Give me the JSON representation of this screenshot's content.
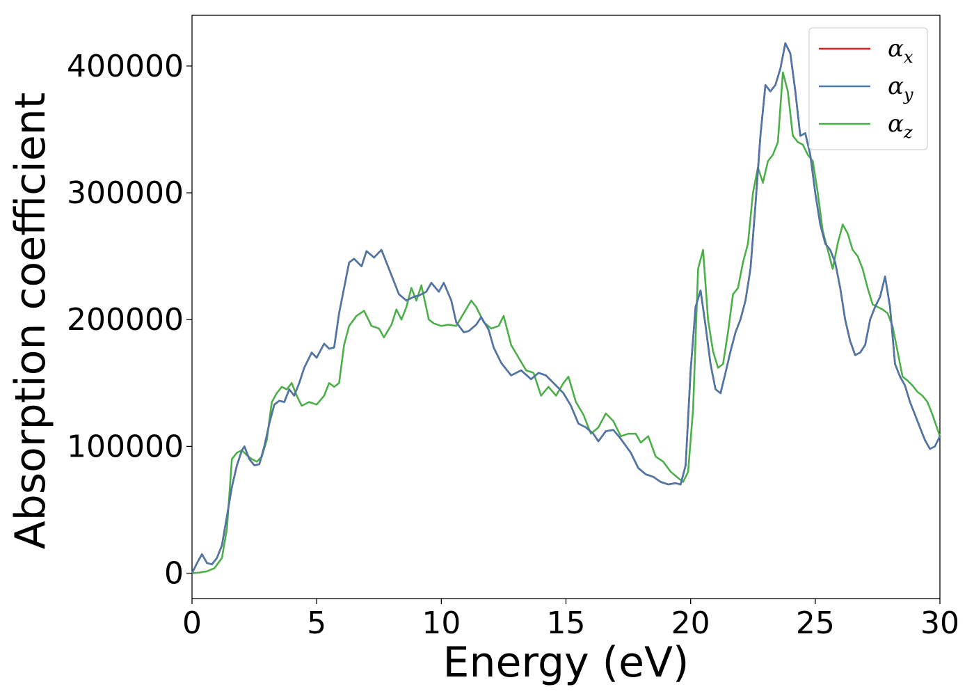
{
  "chart_data": {
    "type": "line",
    "title": "",
    "xlabel": "Energy (eV)",
    "ylabel": "Absorption coefficient",
    "xlim": [
      0,
      30
    ],
    "ylim": [
      -20000,
      440000
    ],
    "xticks": [
      0,
      5,
      10,
      15,
      20,
      25,
      30
    ],
    "xtick_labels": [
      "0",
      "5",
      "10",
      "15",
      "20",
      "25",
      "30"
    ],
    "yticks": [
      0,
      100000,
      200000,
      300000,
      400000
    ],
    "ytick_labels": [
      "0",
      "100000",
      "200000",
      "300000",
      "400000"
    ],
    "grid": false,
    "legend_position": "top-right",
    "series": [
      {
        "name": "α",
        "subscript": "x",
        "color": "#e41a1c",
        "x": [
          0,
          0.2,
          0.4,
          0.6,
          0.8,
          1.0,
          1.2,
          1.4,
          1.6,
          1.8,
          2.0,
          2.1,
          2.3,
          2.5,
          2.7,
          2.9,
          3.1,
          3.3,
          3.5,
          3.7,
          3.9,
          4.1,
          4.3,
          4.5,
          4.8,
          5.0,
          5.3,
          5.5,
          5.7,
          5.9,
          6.1,
          6.3,
          6.5,
          6.8,
          7.0,
          7.3,
          7.6,
          7.8,
          8.1,
          8.3,
          8.6,
          8.9,
          9.1,
          9.4,
          9.6,
          9.9,
          10.1,
          10.4,
          10.6,
          10.9,
          11.1,
          11.4,
          11.6,
          11.9,
          12.1,
          12.4,
          12.8,
          13.2,
          13.6,
          13.9,
          14.2,
          14.6,
          14.9,
          15.2,
          15.5,
          15.8,
          16.1,
          16.3,
          16.6,
          16.9,
          17.2,
          17.6,
          17.9,
          18.2,
          18.5,
          18.8,
          19.1,
          19.4,
          19.6,
          19.8,
          20.0,
          20.2,
          20.4,
          20.6,
          20.8,
          21.0,
          21.2,
          21.4,
          21.6,
          21.8,
          22.0,
          22.2,
          22.4,
          22.6,
          22.8,
          23.0,
          23.2,
          23.4,
          23.6,
          23.8,
          24.0,
          24.2,
          24.4,
          24.6,
          24.8,
          25.0,
          25.2,
          25.4,
          25.6,
          25.8,
          26.0,
          26.2,
          26.4,
          26.6,
          26.8,
          27.0,
          27.2,
          27.4,
          27.6,
          27.8,
          28.0,
          28.2,
          28.4,
          28.6,
          28.8,
          29.0,
          29.2,
          29.4,
          29.6,
          29.8,
          30.0
        ],
        "values": [
          0,
          8000,
          15000,
          8000,
          7000,
          12000,
          22000,
          45000,
          68000,
          85000,
          97000,
          100000,
          90000,
          85000,
          86000,
          100000,
          118000,
          133000,
          136000,
          135000,
          145000,
          140000,
          150000,
          162000,
          174000,
          170000,
          181000,
          177000,
          178000,
          205000,
          225000,
          245000,
          248000,
          242000,
          254000,
          249000,
          255000,
          245000,
          230000,
          220000,
          215000,
          218000,
          219000,
          222000,
          229000,
          222000,
          229000,
          215000,
          198000,
          190000,
          191000,
          196000,
          202000,
          192000,
          178000,
          166000,
          156000,
          160000,
          153000,
          158000,
          156000,
          148000,
          142000,
          132000,
          118000,
          115000,
          110000,
          104000,
          112000,
          113000,
          106000,
          95000,
          83000,
          78000,
          76000,
          72000,
          70000,
          71000,
          70000,
          85000,
          160000,
          210000,
          223000,
          195000,
          165000,
          145000,
          142000,
          158000,
          175000,
          190000,
          200000,
          215000,
          240000,
          290000,
          345000,
          385000,
          380000,
          385000,
          398000,
          418000,
          410000,
          380000,
          345000,
          347000,
          330000,
          300000,
          275000,
          260000,
          255000,
          245000,
          225000,
          200000,
          183000,
          172000,
          174000,
          180000,
          200000,
          210000,
          218000,
          234000,
          210000,
          165000,
          155000,
          148000,
          135000,
          125000,
          115000,
          105000,
          98000,
          100000,
          108000
        ]
      },
      {
        "name": "α",
        "subscript": "y",
        "color": "#4a78a8",
        "x": [
          0,
          0.2,
          0.4,
          0.6,
          0.8,
          1.0,
          1.2,
          1.4,
          1.6,
          1.8,
          2.0,
          2.1,
          2.3,
          2.5,
          2.7,
          2.9,
          3.1,
          3.3,
          3.5,
          3.7,
          3.9,
          4.1,
          4.3,
          4.5,
          4.8,
          5.0,
          5.3,
          5.5,
          5.7,
          5.9,
          6.1,
          6.3,
          6.5,
          6.8,
          7.0,
          7.3,
          7.6,
          7.8,
          8.1,
          8.3,
          8.6,
          8.9,
          9.1,
          9.4,
          9.6,
          9.9,
          10.1,
          10.4,
          10.6,
          10.9,
          11.1,
          11.4,
          11.6,
          11.9,
          12.1,
          12.4,
          12.8,
          13.2,
          13.6,
          13.9,
          14.2,
          14.6,
          14.9,
          15.2,
          15.5,
          15.8,
          16.1,
          16.3,
          16.6,
          16.9,
          17.2,
          17.6,
          17.9,
          18.2,
          18.5,
          18.8,
          19.1,
          19.4,
          19.6,
          19.8,
          20.0,
          20.2,
          20.4,
          20.6,
          20.8,
          21.0,
          21.2,
          21.4,
          21.6,
          21.8,
          22.0,
          22.2,
          22.4,
          22.6,
          22.8,
          23.0,
          23.2,
          23.4,
          23.6,
          23.8,
          24.0,
          24.2,
          24.4,
          24.6,
          24.8,
          25.0,
          25.2,
          25.4,
          25.6,
          25.8,
          26.0,
          26.2,
          26.4,
          26.6,
          26.8,
          27.0,
          27.2,
          27.4,
          27.6,
          27.8,
          28.0,
          28.2,
          28.4,
          28.6,
          28.8,
          29.0,
          29.2,
          29.4,
          29.6,
          29.8,
          30.0
        ],
        "values": [
          0,
          8000,
          15000,
          8000,
          7000,
          12000,
          22000,
          45000,
          68000,
          85000,
          97000,
          100000,
          90000,
          85000,
          86000,
          100000,
          118000,
          133000,
          136000,
          135000,
          145000,
          140000,
          150000,
          162000,
          174000,
          170000,
          181000,
          177000,
          178000,
          205000,
          225000,
          245000,
          248000,
          242000,
          254000,
          249000,
          255000,
          245000,
          230000,
          220000,
          215000,
          218000,
          219000,
          222000,
          229000,
          222000,
          229000,
          215000,
          198000,
          190000,
          191000,
          196000,
          202000,
          192000,
          178000,
          166000,
          156000,
          160000,
          153000,
          158000,
          156000,
          148000,
          142000,
          132000,
          118000,
          115000,
          110000,
          104000,
          112000,
          113000,
          106000,
          95000,
          83000,
          78000,
          76000,
          72000,
          70000,
          71000,
          70000,
          85000,
          160000,
          210000,
          223000,
          195000,
          165000,
          145000,
          142000,
          158000,
          175000,
          190000,
          200000,
          215000,
          240000,
          290000,
          345000,
          385000,
          380000,
          385000,
          398000,
          418000,
          410000,
          380000,
          345000,
          347000,
          330000,
          300000,
          275000,
          260000,
          255000,
          245000,
          225000,
          200000,
          183000,
          172000,
          174000,
          180000,
          200000,
          210000,
          218000,
          234000,
          210000,
          165000,
          155000,
          148000,
          135000,
          125000,
          115000,
          105000,
          98000,
          100000,
          108000
        ]
      },
      {
        "name": "α",
        "subscript": "z",
        "color": "#4daf4a",
        "x": [
          0,
          0.3,
          0.6,
          0.9,
          1.2,
          1.4,
          1.6,
          1.8,
          2.0,
          2.2,
          2.4,
          2.6,
          2.8,
          3.0,
          3.2,
          3.4,
          3.6,
          3.8,
          4.0,
          4.2,
          4.4,
          4.7,
          5.0,
          5.3,
          5.5,
          5.7,
          5.9,
          6.1,
          6.3,
          6.6,
          6.9,
          7.2,
          7.5,
          7.7,
          8.0,
          8.2,
          8.4,
          8.6,
          8.8,
          9.0,
          9.2,
          9.5,
          9.7,
          10.0,
          10.3,
          10.6,
          10.9,
          11.2,
          11.4,
          11.7,
          12.0,
          12.3,
          12.5,
          12.8,
          13.1,
          13.4,
          13.7,
          14.0,
          14.3,
          14.6,
          14.9,
          15.1,
          15.4,
          15.7,
          16.0,
          16.3,
          16.6,
          16.9,
          17.2,
          17.5,
          17.8,
          18.0,
          18.3,
          18.6,
          18.9,
          19.2,
          19.5,
          19.7,
          19.9,
          20.1,
          20.3,
          20.5,
          20.7,
          20.9,
          21.1,
          21.3,
          21.5,
          21.7,
          21.9,
          22.1,
          22.3,
          22.5,
          22.7,
          22.9,
          23.1,
          23.3,
          23.5,
          23.7,
          23.9,
          24.1,
          24.3,
          24.5,
          24.7,
          24.9,
          25.1,
          25.3,
          25.5,
          25.7,
          25.9,
          26.1,
          26.3,
          26.5,
          26.7,
          26.9,
          27.1,
          27.3,
          27.5,
          27.7,
          27.9,
          28.1,
          28.3,
          28.5,
          28.7,
          28.9,
          29.1,
          29.3,
          29.5,
          29.7,
          30.0
        ],
        "values": [
          0,
          500,
          1500,
          4000,
          12000,
          35000,
          90000,
          95000,
          97000,
          93000,
          90000,
          88000,
          92000,
          105000,
          135000,
          142000,
          147000,
          145000,
          150000,
          140000,
          132000,
          135000,
          133000,
          140000,
          150000,
          147000,
          150000,
          180000,
          195000,
          203000,
          207000,
          195000,
          193000,
          186000,
          196000,
          208000,
          200000,
          210000,
          225000,
          215000,
          227000,
          200000,
          197000,
          195000,
          196000,
          195000,
          205000,
          215000,
          210000,
          198000,
          193000,
          195000,
          203000,
          180000,
          170000,
          160000,
          158000,
          140000,
          147000,
          140000,
          150000,
          155000,
          135000,
          125000,
          110000,
          115000,
          126000,
          120000,
          108000,
          110000,
          110000,
          103000,
          108000,
          92000,
          88000,
          80000,
          75000,
          72000,
          80000,
          130000,
          240000,
          255000,
          200000,
          175000,
          162000,
          165000,
          190000,
          220000,
          225000,
          245000,
          260000,
          300000,
          320000,
          308000,
          325000,
          330000,
          340000,
          395000,
          380000,
          345000,
          340000,
          338000,
          330000,
          325000,
          300000,
          270000,
          255000,
          240000,
          260000,
          275000,
          268000,
          255000,
          250000,
          240000,
          225000,
          212000,
          210000,
          208000,
          205000,
          195000,
          175000,
          155000,
          152000,
          148000,
          143000,
          140000,
          135000,
          125000,
          108000
        ]
      }
    ]
  }
}
